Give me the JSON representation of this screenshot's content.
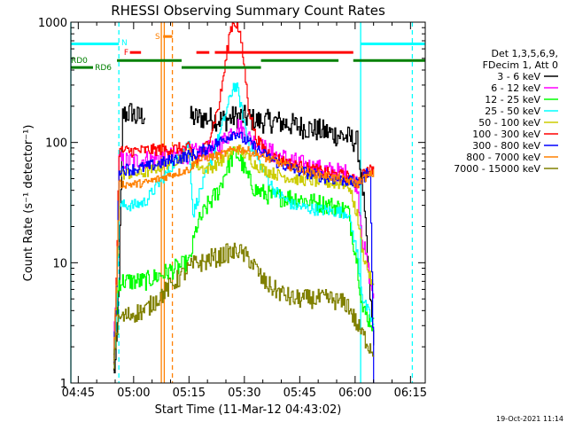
{
  "chart_data": {
    "type": "line",
    "title": "RHESSI Observing Summary Count Rates",
    "xlabel": "Start Time (11-Mar-12 04:43:02)",
    "ylabel": "Count Rate (s⁻¹ detector⁻¹)",
    "x_unit": "minutes after 04:43:02",
    "xlim": [
      0,
      96
    ],
    "ylim": [
      1,
      1000
    ],
    "yscale": "log",
    "x_ticks": [
      {
        "value": 2,
        "label": "04:45"
      },
      {
        "value": 17,
        "label": "05:00"
      },
      {
        "value": 32,
        "label": "05:15"
      },
      {
        "value": 47,
        "label": "05:30"
      },
      {
        "value": 62,
        "label": "05:45"
      },
      {
        "value": 77,
        "label": "06:00"
      },
      {
        "value": 92,
        "label": "06:15"
      }
    ],
    "y_ticks": [
      {
        "value": 1,
        "label": "1"
      },
      {
        "value": 10,
        "label": "10"
      },
      {
        "value": 100,
        "label": "100"
      },
      {
        "value": 1000,
        "label": "1000"
      }
    ],
    "legend": {
      "header": [
        "Det 1,3,5,6,9,",
        "FDecim 1, Att 0"
      ],
      "position": "right"
    },
    "series": [
      {
        "name": "3 - 6 keV",
        "color": "#000000",
        "x": [
          11.5,
          12.2,
          13,
          14,
          15.5,
          16.5,
          17.5,
          20,
          30,
          32,
          36,
          40,
          42,
          45,
          48,
          50,
          55,
          60,
          65,
          70,
          75,
          77.5,
          79,
          82
        ],
        "y": [
          1.2,
          1.6,
          8,
          170,
          175,
          180,
          160,
          170,
          null,
          160,
          160,
          155,
          155,
          165,
          160,
          150,
          150,
          140,
          130,
          120,
          110,
          100,
          40,
          2
        ]
      },
      {
        "name": "6 - 12 keV",
        "color": "#ff00ff",
        "x": [
          11.5,
          12.2,
          13,
          14,
          17,
          20,
          32,
          36,
          40,
          42,
          44,
          45,
          46,
          48,
          52,
          55,
          60,
          65,
          70,
          75,
          77.5,
          79,
          82
        ],
        "y": [
          2,
          5,
          70,
          70,
          70,
          72,
          80,
          85,
          90,
          110,
          130,
          140,
          130,
          110,
          90,
          80,
          70,
          62,
          58,
          55,
          45,
          15,
          5
        ]
      },
      {
        "name": "12 - 25 keV",
        "color": "#00ff00",
        "x": [
          11.5,
          12.2,
          13,
          14,
          17,
          20,
          32,
          34,
          37,
          40,
          42,
          44,
          45,
          46,
          48,
          50,
          55,
          60,
          65,
          70,
          75,
          77.5,
          79,
          82
        ],
        "y": [
          1.5,
          4,
          7,
          7,
          7,
          7,
          10,
          20,
          30,
          40,
          60,
          78,
          80,
          70,
          50,
          40,
          35,
          35,
          32,
          30,
          27,
          10,
          4,
          3
        ]
      },
      {
        "name": "25 - 50 keV",
        "color": "#00ffff",
        "x": [
          11.5,
          12.2,
          13,
          14,
          17,
          20,
          32,
          33,
          35,
          38,
          41,
          43,
          44,
          45,
          46,
          48,
          52,
          55,
          60,
          65,
          70,
          75,
          77.5,
          79,
          82
        ],
        "y": [
          1.5,
          4,
          30,
          30,
          30,
          32,
          100,
          25,
          40,
          70,
          140,
          230,
          300,
          280,
          200,
          100,
          60,
          40,
          30,
          28,
          27,
          26,
          12,
          5,
          3
        ]
      },
      {
        "name": "50 - 100 keV",
        "color": "#cccc00",
        "x": [
          11.5,
          12.2,
          13,
          14,
          17,
          20,
          32,
          34,
          36,
          38,
          40,
          42,
          44,
          45,
          46,
          48,
          50,
          52,
          55,
          60,
          65,
          70,
          75,
          77.5,
          79,
          82
        ],
        "y": [
          1.5,
          5,
          55,
          55,
          55,
          56,
          80,
          65,
          60,
          62,
          68,
          75,
          85,
          90,
          85,
          75,
          65,
          60,
          55,
          50,
          48,
          46,
          45,
          25,
          12,
          6
        ]
      },
      {
        "name": "100 - 300 keV",
        "color": "#ff0000",
        "x": [
          11.5,
          12.2,
          13,
          14,
          17,
          20,
          32,
          34,
          37,
          40,
          42,
          43,
          44,
          45,
          46,
          47,
          48,
          50,
          52,
          55,
          60,
          65,
          70,
          75,
          77.5,
          79,
          82
        ],
        "y": [
          1.5,
          6,
          85,
          85,
          85,
          86,
          90,
          70,
          100,
          200,
          500,
          850,
          1000,
          950,
          700,
          400,
          200,
          110,
          90,
          75,
          65,
          60,
          55,
          52,
          45,
          55,
          60
        ]
      },
      {
        "name": "300 - 800 keV",
        "color": "#0000ff",
        "x": [
          11.5,
          12.2,
          13,
          14,
          17,
          20,
          32,
          34,
          37,
          40,
          42,
          44,
          45,
          46,
          48,
          50,
          52,
          55,
          60,
          65,
          70,
          75,
          77.5,
          79,
          80,
          81,
          82
        ],
        "y": [
          1.5,
          6,
          60,
          60,
          60,
          62,
          78,
          80,
          90,
          100,
          110,
          120,
          120,
          110,
          100,
          90,
          80,
          70,
          60,
          55,
          50,
          48,
          45,
          50,
          55,
          60,
          1
        ]
      },
      {
        "name": "800 - 7000 keV",
        "color": "#ff8000",
        "x": [
          11.5,
          12.2,
          13,
          14,
          17,
          20,
          32,
          34,
          37,
          40,
          42,
          44,
          45,
          46,
          48,
          50,
          52,
          55,
          60,
          65,
          70,
          75,
          77.5,
          79,
          82
        ],
        "y": [
          1.5,
          6,
          45,
          45,
          45,
          46,
          60,
          70,
          75,
          78,
          82,
          88,
          90,
          88,
          85,
          80,
          75,
          70,
          62,
          56,
          52,
          48,
          45,
          50,
          55
        ]
      },
      {
        "name": "7000 - 15000 keV",
        "color": "#808000",
        "x": [
          11.5,
          12.2,
          13,
          14,
          17,
          20,
          32,
          34,
          36,
          38,
          40,
          42,
          44,
          45,
          46,
          48,
          50,
          52,
          55,
          60,
          65,
          70,
          75,
          77.5,
          79,
          82
        ],
        "y": [
          1.5,
          2.5,
          3.5,
          3.5,
          3.8,
          4,
          9,
          10,
          10,
          11,
          11,
          12,
          12,
          13,
          12,
          11,
          9,
          7,
          6,
          5,
          5,
          5,
          4.5,
          3,
          2.5,
          1.8
        ]
      }
    ],
    "vertical_markers": [
      {
        "x": 0,
        "color": "#00ffff",
        "style": "solid"
      },
      {
        "x": 13,
        "color": "#00ffff",
        "style": "dashed"
      },
      {
        "x": 24.5,
        "color": "#ff8000",
        "style": "solid"
      },
      {
        "x": 25.3,
        "color": "#ff8000",
        "style": "solid"
      },
      {
        "x": 27.5,
        "color": "#ff8000",
        "style": "dashed"
      },
      {
        "x": 78.5,
        "color": "#00ffff",
        "style": "solid"
      },
      {
        "x": 92.5,
        "color": "#00ffff",
        "style": "dashed"
      }
    ],
    "flag_bars": [
      {
        "label": "",
        "color": "#00ffff",
        "y": 660,
        "segments": [
          [
            0,
            13
          ],
          [
            78.5,
            96
          ]
        ]
      },
      {
        "label": "N",
        "color": "#00ffff",
        "y": 620,
        "segments": []
      },
      {
        "label": "S",
        "color": "#ff8000",
        "y": 760,
        "segments": [
          [
            25,
            27.5
          ]
        ]
      },
      {
        "label": "F",
        "color": "#ff0000",
        "y": 560,
        "segments": [
          [
            16,
            19
          ],
          [
            34,
            37.5
          ],
          [
            39,
            76.5
          ]
        ]
      },
      {
        "label": "RD0",
        "color": "#008000",
        "y": 480,
        "segments": [
          [
            12.5,
            30
          ],
          [
            51.5,
            72.5
          ],
          [
            76.5,
            96
          ]
        ]
      },
      {
        "label": "RD6",
        "color": "#008000",
        "y": 420,
        "segments": [
          [
            0,
            6
          ],
          [
            30,
            51.5
          ]
        ]
      }
    ],
    "annotations": [],
    "grid": false,
    "legend_position": "right"
  },
  "footer": {
    "timestamp": "19-Oct-2021 11:14"
  }
}
